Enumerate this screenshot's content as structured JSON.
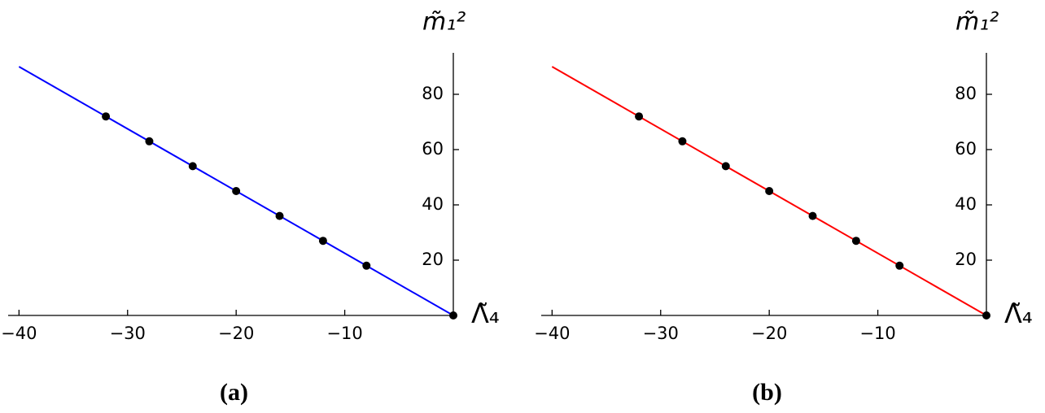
{
  "chart_data": [
    {
      "type": "line",
      "caption": "(a)",
      "xlabel": "Λ̃₄",
      "ylabel": "m̃₁²",
      "xlim": [
        -41,
        0
      ],
      "ylim": [
        0,
        95
      ],
      "xticks": [
        {
          "value": -40,
          "label": "−40"
        },
        {
          "value": -30,
          "label": "−30"
        },
        {
          "value": -20,
          "label": "−20"
        },
        {
          "value": -10,
          "label": "−10"
        }
      ],
      "yticks": [
        20,
        40,
        60,
        80
      ],
      "line": {
        "x": [
          -40,
          0
        ],
        "values": [
          90,
          0
        ],
        "color": "#0000ff"
      },
      "points": {
        "x": [
          -32,
          -28,
          -24,
          -20,
          -16,
          -12,
          -8,
          0
        ],
        "values": [
          72,
          63,
          54,
          45,
          36,
          27,
          18,
          0
        ],
        "color": "#000000"
      }
    },
    {
      "type": "line",
      "caption": "(b)",
      "xlabel": "Λ̃₄",
      "ylabel": "m̃₁²",
      "xlim": [
        -41,
        0
      ],
      "ylim": [
        0,
        95
      ],
      "xticks": [
        {
          "value": -40,
          "label": "−40"
        },
        {
          "value": -30,
          "label": "−30"
        },
        {
          "value": -20,
          "label": "−20"
        },
        {
          "value": -10,
          "label": "−10"
        }
      ],
      "yticks": [
        20,
        40,
        60,
        80
      ],
      "line": {
        "x": [
          -40,
          0
        ],
        "values": [
          90,
          0
        ],
        "color": "#ff0000"
      },
      "points": {
        "x": [
          -32,
          -28,
          -24,
          -20,
          -16,
          -12,
          -8,
          0
        ],
        "values": [
          72,
          63,
          54,
          45,
          36,
          27,
          18,
          0
        ],
        "color": "#000000"
      }
    }
  ]
}
